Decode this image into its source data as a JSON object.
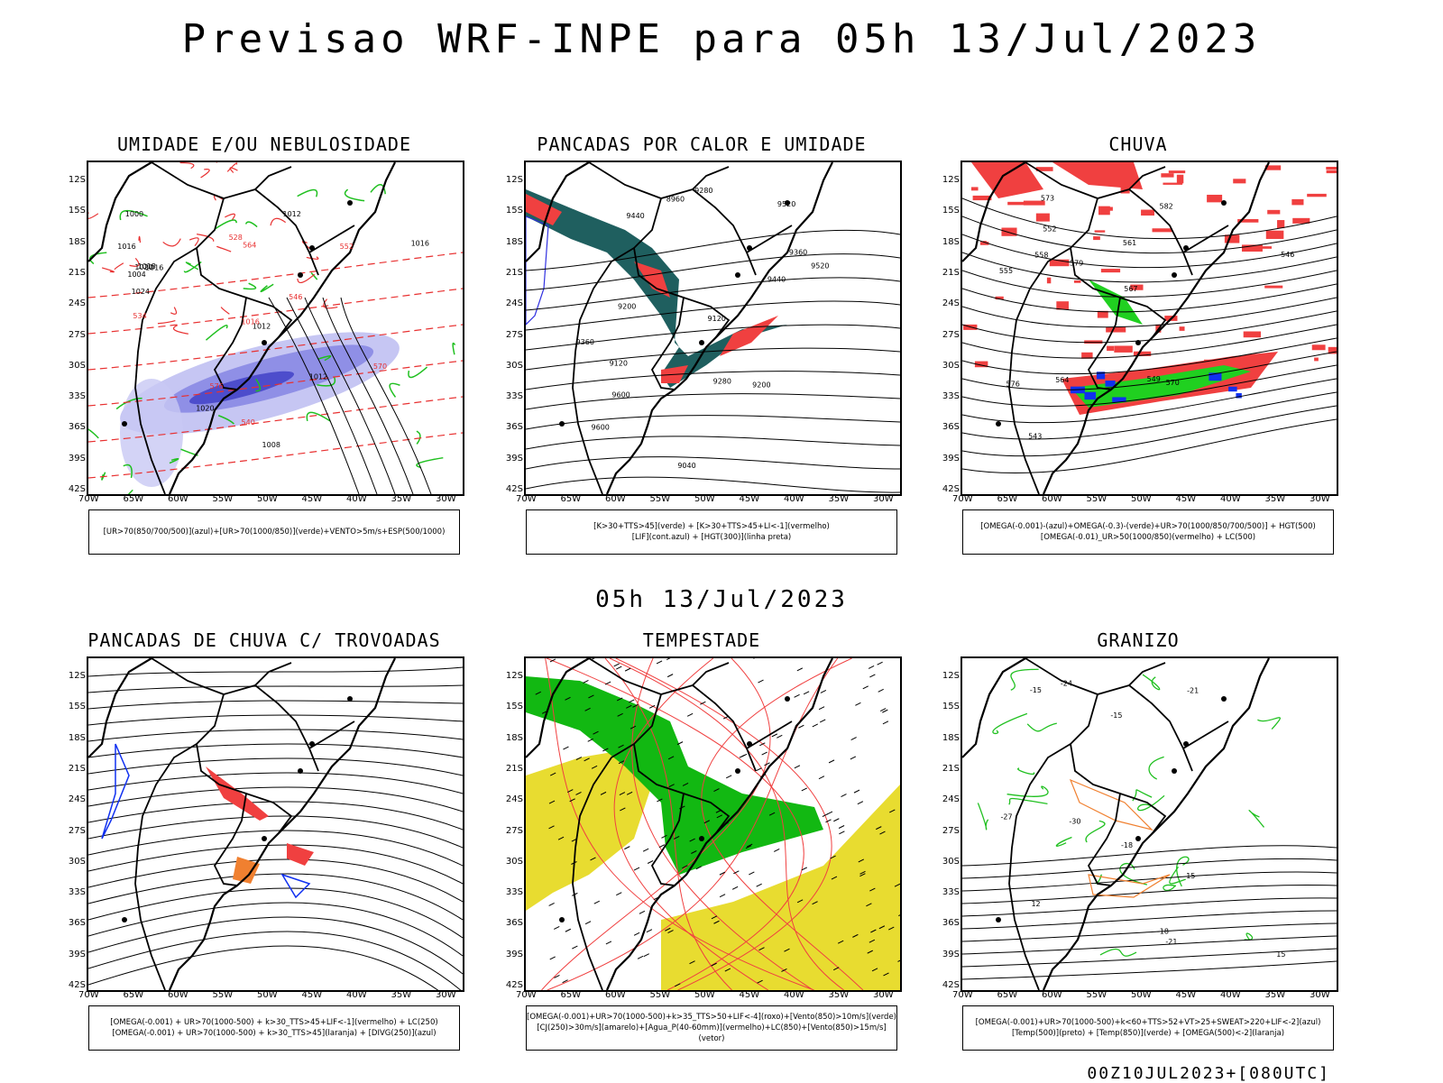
{
  "title": "Previsao WRF-INPE  para 05h 13/Jul/2023",
  "mid_title": "05h 13/Jul/2023",
  "footer": "00Z10JUL2023+[080UTC]",
  "lat_labels": [
    "12S",
    "15S",
    "18S",
    "21S",
    "24S",
    "27S",
    "30S",
    "33S",
    "36S",
    "39S",
    "42S"
  ],
  "lon_labels": [
    "70W",
    "65W",
    "60W",
    "55W",
    "50W",
    "45W",
    "40W",
    "35W",
    "30W"
  ],
  "panels": [
    {
      "key": "umidade",
      "title": "UMIDADE E/OU NEBULOSIDADE",
      "legend": [
        "[UR>70(850/700/500)](azul)+[UR>70(1000/850)](verde)+VENTO>5m/s+ESP(500/1000)"
      ],
      "labels": [
        "1012",
        "1012",
        "1016",
        "1018",
        "1016",
        "1012",
        "1008",
        "1004",
        "1000",
        "1016",
        "1020",
        "1024",
        "1020",
        "1016",
        "570",
        "576",
        "564",
        "552",
        "546",
        "540",
        "534",
        "528"
      ]
    },
    {
      "key": "pancadas_calor",
      "title": "PANCADAS POR CALOR E UMIDADE",
      "legend": [
        "[K>30+TTS>45](verde) + [K>30+TTS>45+LI<-1](vermelho)",
        "[LIF](cont.azul) + [HGT(300)](linha preta)"
      ],
      "labels": [
        "9600",
        "9520",
        "9440",
        "9360",
        "9280",
        "9200",
        "9120",
        "9600",
        "9520",
        "9440",
        "9360",
        "9280",
        "9200",
        "9120",
        "9040",
        "8960"
      ]
    },
    {
      "key": "chuva",
      "title": "CHUVA",
      "legend": [
        "[OMEGA(-0.001)-(azul)+OMEGA(-0.3)-(verde)+UR>70(1000/850/700/500)] + HGT(500)",
        "[OMEGA(-0.01)_UR>50(1000/850)(vermelho) + LC(500)"
      ],
      "labels": [
        "582",
        "579",
        "576",
        "573",
        "570",
        "567",
        "564",
        "561",
        "558",
        "555",
        "552",
        "549",
        "546",
        "543"
      ]
    },
    {
      "key": "trovoadas",
      "title": "PANCADAS DE CHUVA C/ TROVOADAS",
      "legend": [
        "[OMEGA(-0.001) + UR>70(1000-500) + k>30_TTS>45+LIF<-1](vermelho) + LC(250)",
        "[OMEGA(-0.001) + UR>70(1000-500) + k>30_TTS>45](laranja) + [DIVG(250)](azul)"
      ],
      "labels": []
    },
    {
      "key": "tempestade",
      "title": "TEMPESTADE",
      "legend": [
        "[OMEGA(-0.001)+UR>70(1000-500)+k>35_TTS>50+LIF<-4](roxo)+[Vento(850)>10m/s](verde)",
        "[CJ(250)>30m/s](amarelo)+[Agua_P(40-60mm)](vermelho)+LC(850)+[Vento(850)>15m/s](vetor)"
      ],
      "labels": []
    },
    {
      "key": "granizo",
      "title": "GRANIZO",
      "legend": [
        "[OMEGA(-0.001)+UR>70(1000-500)+k<60+TTS>52+VT>25+SWEAT>220+LIF<-2](azul)",
        "[Temp(500)](preto) + [Temp(850)](verde) + [OMEGA(500)<-2](laranja)"
      ],
      "labels": [
        "-15",
        "-15",
        "-18",
        "-18",
        "-21",
        "-21",
        "-24",
        "-27",
        "-30",
        "12",
        "15",
        "15"
      ]
    }
  ]
}
